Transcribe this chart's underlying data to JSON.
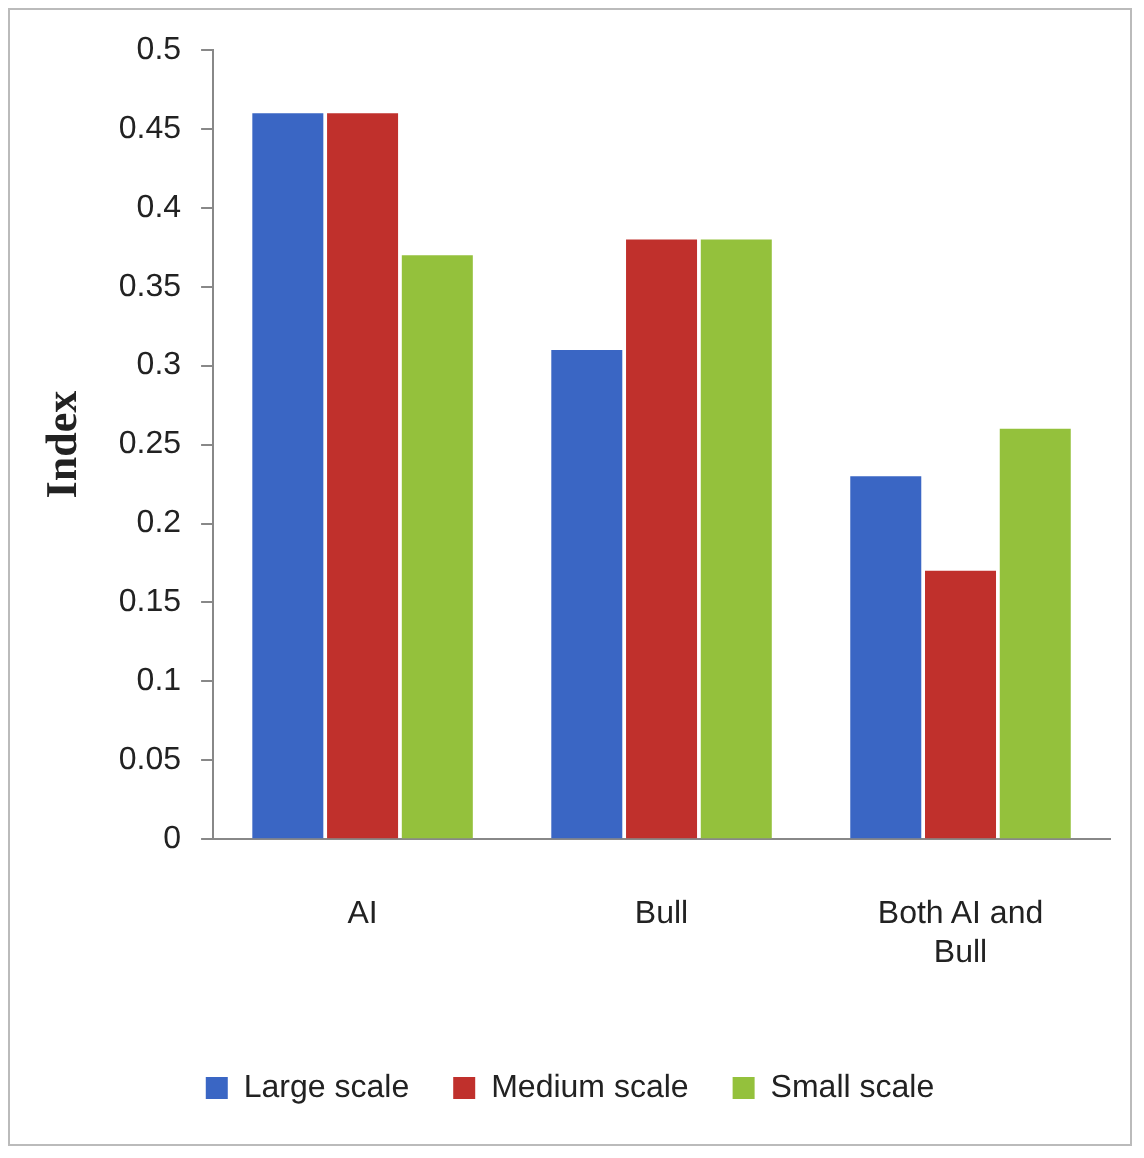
{
  "chart_data": {
    "type": "bar",
    "ylabel": "Index",
    "categories": [
      "AI",
      "Bull",
      "Both AI and Bull"
    ],
    "series": [
      {
        "name": "Large scale",
        "color": "#3a66c4",
        "values": [
          0.46,
          0.31,
          0.23
        ]
      },
      {
        "name": "Medium scale",
        "color": "#c0302c",
        "values": [
          0.46,
          0.38,
          0.17
        ]
      },
      {
        "name": "Small scale",
        "color": "#94c13c",
        "values": [
          0.37,
          0.38,
          0.26
        ]
      }
    ],
    "ylim": [
      0,
      0.5
    ],
    "yticks": [
      0,
      0.05,
      0.1,
      0.15,
      0.2,
      0.25,
      0.3,
      0.35,
      0.4,
      0.45,
      0.5
    ],
    "grid": false,
    "legend": "bottom"
  }
}
